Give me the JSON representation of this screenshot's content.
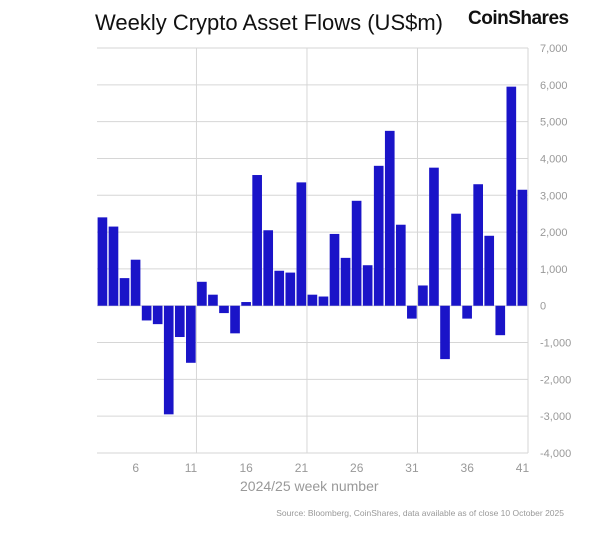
{
  "chart_data": {
    "type": "bar",
    "title": "Weekly Crypto Asset Flows (US$m)",
    "logo": "CoinShares",
    "xlabel": "2024/25 week number",
    "ylabel": "",
    "source": "Source: Bloomberg, CoinShares, data available as of close 10 October 2025",
    "x": [
      3,
      4,
      5,
      6,
      7,
      8,
      9,
      10,
      11,
      12,
      13,
      14,
      15,
      16,
      17,
      18,
      19,
      20,
      21,
      22,
      23,
      24,
      25,
      26,
      27,
      28,
      29,
      30,
      31,
      32,
      33,
      34,
      35,
      36,
      37,
      38,
      39,
      40,
      41
    ],
    "values": [
      2400,
      2150,
      750,
      1250,
      -400,
      -500,
      -2950,
      -850,
      -1550,
      650,
      300,
      -200,
      -750,
      100,
      3550,
      2050,
      950,
      900,
      3350,
      300,
      250,
      1950,
      1300,
      2850,
      1100,
      3800,
      4750,
      2200,
      -350,
      550,
      3750,
      -1450,
      2500,
      -350,
      3300,
      1900,
      -800,
      5950,
      3150
    ],
    "xticks": [
      6,
      11,
      16,
      21,
      26,
      31,
      36,
      41
    ],
    "yticks": [
      "-4,000",
      "-3,000",
      "-2,000",
      "-1,000",
      "0",
      "1,000",
      "2,000",
      "3,000",
      "4,000",
      "5,000",
      "6,000",
      "7,000"
    ],
    "ytick_values": [
      -4000,
      -3000,
      -2000,
      -1000,
      0,
      1000,
      2000,
      3000,
      4000,
      5000,
      6000,
      7000
    ],
    "ylim": [
      -4000,
      7000
    ],
    "grid": true,
    "bar_color": "#1a14c8"
  }
}
